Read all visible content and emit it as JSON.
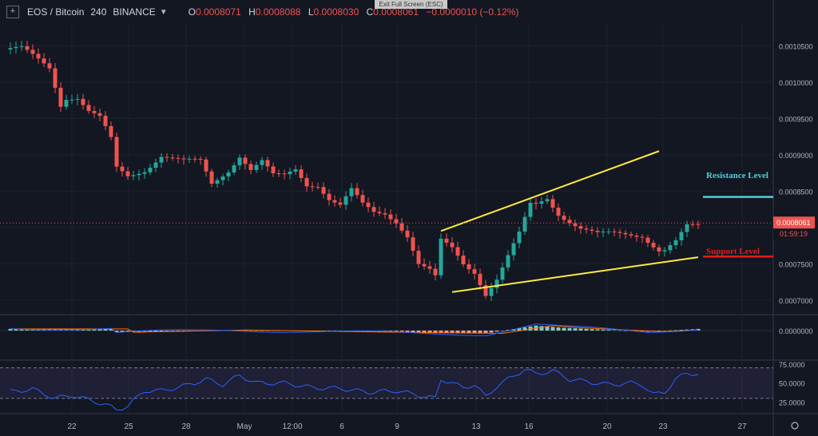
{
  "header": {
    "add_icon": "plus-icon",
    "symbol": "EOS / Bitcoin",
    "interval": "240",
    "exchange": "BINANCE",
    "open_label": "O",
    "open": "0.0008071",
    "high_label": "H",
    "high": "0.0008088",
    "low_label": "L",
    "low": "0.0008030",
    "close_label": "C",
    "close": "0.0008061",
    "change": "−0.0000010 (−0.12%)"
  },
  "exit_fullscreen": "Exit Full Screen (ESC)",
  "annotations": {
    "resistance": "Resistance Level",
    "support": "Support Level"
  },
  "colors": {
    "background": "#131722",
    "up": "#26a69a",
    "down": "#ef5350",
    "trendline": "#ffeb3b",
    "resistance": "#4dd0e1",
    "support": "#e11d1d",
    "rsi": "#2962ff",
    "macd_signal": "#ff6d00"
  },
  "chart_data": {
    "type": "candlestick",
    "symbol": "EOS / Bitcoin",
    "interval": "240",
    "x_ticks": [
      "22",
      "25",
      "28",
      "May",
      "12:00",
      "6",
      "9",
      "13",
      "16",
      "20",
      "23",
      "27"
    ],
    "price_axis": {
      "ticks": [
        "0.0010500",
        "0.0010000",
        "0.0009500",
        "0.0009000",
        "0.0008500",
        "0.0008000",
        "0.0007500",
        "0.0007000"
      ],
      "ylim": [
        0.00068,
        0.00108
      ]
    },
    "last_price": "0.0008061",
    "countdown": "01:59:19",
    "price_path": [
      [
        0,
        0.001045
      ],
      [
        3,
        0.001045
      ],
      [
        6,
        0.00103
      ],
      [
        8,
        0.00102
      ],
      [
        10,
        0.00097
      ],
      [
        11,
        0.00098
      ],
      [
        13,
        0.00098
      ],
      [
        15,
        0.00096
      ],
      [
        17,
        0.00095
      ],
      [
        19,
        0.00092
      ],
      [
        20,
        0.00088
      ],
      [
        22,
        0.00087
      ],
      [
        25,
        0.00088
      ],
      [
        28,
        0.0009
      ],
      [
        32,
        0.00089
      ],
      [
        35,
        0.00089
      ],
      [
        37,
        0.00086
      ],
      [
        40,
        0.00088
      ],
      [
        42,
        0.0009
      ],
      [
        44,
        0.00088
      ],
      [
        46,
        0.00089
      ],
      [
        48,
        0.00087
      ],
      [
        50,
        0.00087
      ],
      [
        52,
        0.00088
      ],
      [
        54,
        0.00086
      ],
      [
        56,
        0.00086
      ],
      [
        58,
        0.00084
      ],
      [
        60,
        0.00083
      ],
      [
        62,
        0.00085
      ],
      [
        64,
        0.00083
      ],
      [
        66,
        0.00082
      ],
      [
        68,
        0.00082
      ],
      [
        70,
        0.00081
      ],
      [
        72,
        0.00079
      ],
      [
        74,
        0.00075
      ],
      [
        76,
        0.00074
      ],
      [
        77,
        0.00073
      ],
      [
        78,
        0.00078
      ],
      [
        80,
        0.00077
      ],
      [
        82,
        0.00075
      ],
      [
        84,
        0.00074
      ],
      [
        86,
        0.00071
      ],
      [
        88,
        0.00073
      ],
      [
        90,
        0.00076
      ],
      [
        92,
        0.00079
      ],
      [
        94,
        0.00083
      ],
      [
        95,
        0.00083
      ],
      [
        97,
        0.00084
      ],
      [
        99,
        0.00082
      ],
      [
        101,
        0.00081
      ],
      [
        103,
        0.0008
      ],
      [
        106,
        0.00079
      ],
      [
        110,
        0.00079
      ],
      [
        114,
        0.00079
      ],
      [
        117,
        0.00077
      ],
      [
        118,
        0.00077
      ],
      [
        120,
        0.00078
      ],
      [
        122,
        0.0008
      ],
      [
        124,
        0.0008
      ]
    ],
    "trendlines": [
      {
        "from": [
          78,
          0.000795
        ],
        "to": [
          117,
          0.000905
        ]
      },
      {
        "from": [
          80,
          0.000711
        ],
        "to": [
          124,
          0.000759
        ]
      }
    ],
    "levels": [
      {
        "name": "Resistance Level",
        "price": 0.000842
      },
      {
        "name": "Support Level",
        "price": 0.00076
      }
    ],
    "macd": {
      "ticks": [
        "0.0000000"
      ],
      "histogram_peaks": [
        [
          20,
          -0.3
        ],
        [
          40,
          0.1
        ],
        [
          60,
          -0.2
        ],
        [
          75,
          -0.4
        ],
        [
          86,
          -0.5
        ],
        [
          95,
          0.9
        ],
        [
          100,
          0.5
        ],
        [
          115,
          -0.2
        ],
        [
          124,
          0.3
        ]
      ]
    },
    "rsi": {
      "ticks": [
        "75.0000",
        "50.0000",
        "25.0000"
      ],
      "bands": [
        70,
        30
      ],
      "ylim": [
        10,
        80
      ],
      "path": [
        [
          0,
          38
        ],
        [
          5,
          42
        ],
        [
          9,
          30
        ],
        [
          12,
          34
        ],
        [
          15,
          28
        ],
        [
          18,
          22
        ],
        [
          20,
          15
        ],
        [
          22,
          20
        ],
        [
          25,
          40
        ],
        [
          28,
          40
        ],
        [
          32,
          46
        ],
        [
          36,
          55
        ],
        [
          39,
          48
        ],
        [
          42,
          60
        ],
        [
          45,
          50
        ],
        [
          50,
          50
        ],
        [
          55,
          44
        ],
        [
          60,
          43
        ],
        [
          65,
          38
        ],
        [
          70,
          40
        ],
        [
          74,
          34
        ],
        [
          77,
          30
        ],
        [
          78,
          55
        ],
        [
          80,
          50
        ],
        [
          82,
          44
        ],
        [
          84,
          48
        ],
        [
          86,
          32
        ],
        [
          88,
          46
        ],
        [
          90,
          55
        ],
        [
          93,
          68
        ],
        [
          95,
          62
        ],
        [
          98,
          66
        ],
        [
          101,
          55
        ],
        [
          104,
          52
        ],
        [
          108,
          48
        ],
        [
          112,
          50
        ],
        [
          114,
          48
        ],
        [
          116,
          35
        ],
        [
          118,
          38
        ],
        [
          120,
          55
        ],
        [
          122,
          63
        ],
        [
          124,
          62
        ]
      ]
    }
  }
}
